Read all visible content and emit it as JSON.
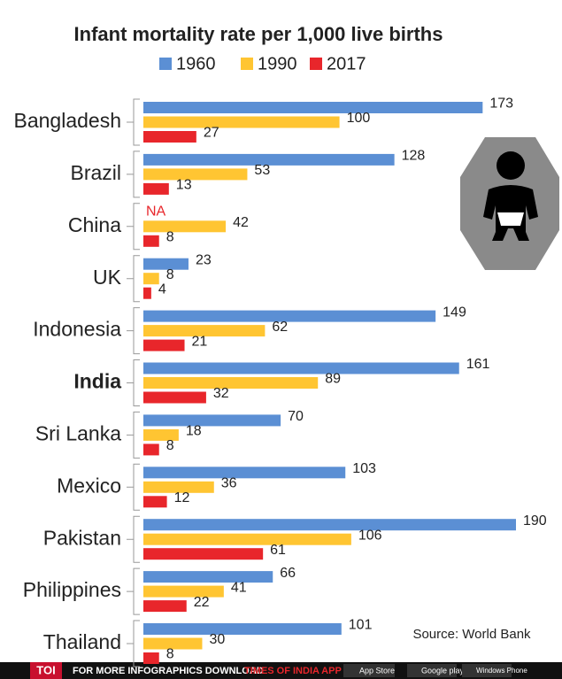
{
  "chart_data": {
    "type": "bar",
    "orientation": "horizontal",
    "title": "Infant mortality rate per 1,000 live births",
    "categories": [
      "Bangladesh",
      "Brazil",
      "China",
      "UK",
      "Indonesia",
      "India",
      "Sri Lanka",
      "Mexico",
      "Pakistan",
      "Philippines",
      "Thailand"
    ],
    "series": [
      {
        "name": "1960",
        "color": "#5b8fd4",
        "values": [
          173,
          128,
          null,
          23,
          149,
          161,
          70,
          103,
          190,
          66,
          101
        ],
        "value_labels": [
          "173",
          "128",
          "NA",
          "23",
          "149",
          "161",
          "70",
          "103",
          "190",
          "66",
          "101"
        ]
      },
      {
        "name": "1990",
        "color": "#ffc532",
        "values": [
          100,
          53,
          42,
          8,
          62,
          89,
          18,
          36,
          106,
          41,
          30
        ]
      },
      {
        "name": "2017",
        "color": "#e8262b",
        "values": [
          27,
          13,
          8,
          4,
          21,
          32,
          8,
          12,
          61,
          22,
          8
        ]
      }
    ],
    "source": "Source: World Bank",
    "footer": {
      "brand": "TOI",
      "text": "FOR MORE INFOGRAPHICS DOWNLOAD",
      "app": "TIMES OF INDIA APP",
      "stores": [
        "App Store",
        "Google play",
        "Windows Phone"
      ]
    }
  }
}
